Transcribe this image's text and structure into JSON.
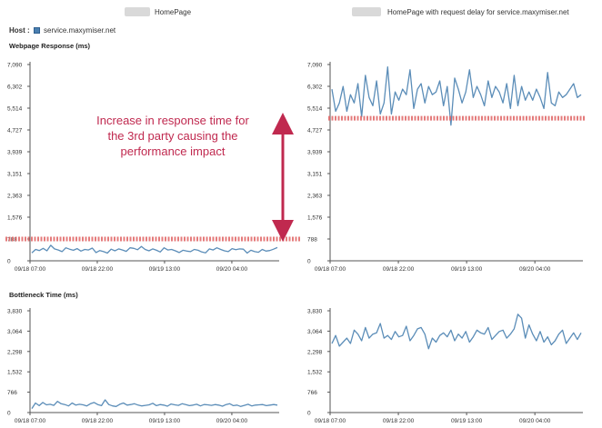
{
  "headers": {
    "left_title": "HomePage",
    "right_title": "HomePage with request delay for service.maxymiser.net"
  },
  "host": {
    "label": "Host :",
    "value": "service.maxymiser.net"
  },
  "sections": {
    "response_label": "Webpage Response (ms)",
    "bottleneck_label": "Bottleneck Time (ms)"
  },
  "annotation": {
    "lines": [
      "Increase in response time for",
      "the 3rd party causing the",
      "performance impact"
    ],
    "color": "#c0294f"
  },
  "colors": {
    "series": "#5b8db8",
    "threshold": "#e06464",
    "axis": "#555555",
    "grid": "#e6e6e6"
  },
  "chart_data": [
    {
      "id": "response-left",
      "type": "line",
      "title": "",
      "ylabel": "Webpage Response (ms)",
      "yticks": [
        "7,090",
        "6,302",
        "5,514",
        "4,727",
        "3,939",
        "3,151",
        "2,363",
        "1,576",
        "788",
        "0"
      ],
      "ylim": [
        0,
        7090
      ],
      "xticks": [
        "09/18 07:00",
        "09/18 22:00",
        "09/19 13:00",
        "09/20 04:00"
      ],
      "threshold": 788,
      "values": [
        290,
        410,
        370,
        450,
        360,
        560,
        430,
        390,
        330,
        470,
        420,
        380,
        440,
        350,
        410,
        390,
        460,
        300,
        370,
        330,
        280,
        420,
        360,
        430,
        390,
        340,
        470,
        450,
        400,
        520,
        410,
        360,
        430,
        380,
        320,
        470,
        390,
        410,
        360,
        300,
        380,
        350,
        330,
        410,
        380,
        320,
        290,
        430,
        390,
        470,
        410,
        360,
        330,
        440,
        400,
        430,
        420,
        280,
        380,
        330,
        310,
        410,
        350,
        370,
        420,
        480
      ]
    },
    {
      "id": "response-right",
      "type": "line",
      "title": "",
      "ylabel": "",
      "yticks": [
        "7,090",
        "6,302",
        "5,514",
        "4,727",
        "3,939",
        "3,151",
        "2,363",
        "1,576",
        "788",
        "0"
      ],
      "ylim": [
        0,
        7090
      ],
      "xticks": [
        "09/18 07:00",
        "09/18 22:00",
        "09/19 13:00",
        "09/20 04:00"
      ],
      "threshold": 5150,
      "values": [
        6200,
        5400,
        5700,
        6300,
        5400,
        6000,
        5700,
        6400,
        5200,
        6700,
        5900,
        5600,
        6500,
        5300,
        5700,
        7000,
        5300,
        6100,
        5800,
        6200,
        6000,
        6900,
        5500,
        6200,
        6400,
        5700,
        6300,
        6000,
        6100,
        6500,
        5600,
        6300,
        4900,
        6600,
        6200,
        5700,
        6100,
        6900,
        5900,
        6300,
        6000,
        5600,
        6500,
        5900,
        6300,
        6100,
        5700,
        6400,
        5500,
        6700,
        5600,
        6300,
        5800,
        6100,
        5800,
        6200,
        5900,
        5500,
        6800,
        5700,
        5600,
        6100,
        5900,
        6000,
        6200,
        6400,
        5900,
        6000
      ]
    },
    {
      "id": "bottleneck-left",
      "type": "line",
      "title": "",
      "ylabel": "Bottleneck Time (ms)",
      "yticks": [
        "3,830",
        "3,064",
        "2,298",
        "1,532",
        "766",
        "0"
      ],
      "ylim": [
        0,
        3830
      ],
      "xticks": [
        "09/18 07:00",
        "09/18 22:00",
        "09/19 13:00",
        "09/20 04:00"
      ],
      "values": [
        150,
        360,
        260,
        380,
        290,
        310,
        270,
        420,
        330,
        300,
        250,
        360,
        280,
        310,
        290,
        250,
        330,
        380,
        300,
        260,
        480,
        300,
        250,
        230,
        310,
        360,
        280,
        300,
        330,
        280,
        250,
        270,
        290,
        350,
        260,
        300,
        280,
        240,
        320,
        290,
        270,
        330,
        300,
        260,
        280,
        310,
        250,
        300,
        290,
        270,
        300,
        280,
        240,
        300,
        330,
        260,
        280,
        230,
        270,
        310,
        250,
        280,
        290,
        300,
        260,
        280,
        300,
        280
      ]
    },
    {
      "id": "bottleneck-right",
      "type": "line",
      "title": "",
      "ylabel": "",
      "yticks": [
        "3,830",
        "3,064",
        "2,298",
        "1,532",
        "766",
        "0"
      ],
      "ylim": [
        0,
        3830
      ],
      "xticks": [
        "09/18 07:00",
        "09/18 22:00",
        "09/19 13:00",
        "09/20 04:00"
      ],
      "values": [
        2600,
        2900,
        2500,
        2650,
        2800,
        2600,
        3100,
        2950,
        2700,
        3200,
        2800,
        2950,
        3000,
        3350,
        2800,
        2900,
        2750,
        3050,
        2850,
        2900,
        3250,
        2700,
        2900,
        3150,
        3200,
        2950,
        2400,
        2800,
        2650,
        2900,
        3000,
        2850,
        3100,
        2700,
        2950,
        2800,
        3050,
        2650,
        2850,
        3100,
        3000,
        2950,
        3200,
        2750,
        2900,
        3050,
        3100,
        2800,
        2950,
        3150,
        3700,
        3550,
        2800,
        3300,
        2950,
        2700,
        3050,
        2650,
        2850,
        2550,
        2700,
        2950,
        3100,
        2600,
        2800,
        3000,
        2750,
        3000
      ]
    }
  ]
}
